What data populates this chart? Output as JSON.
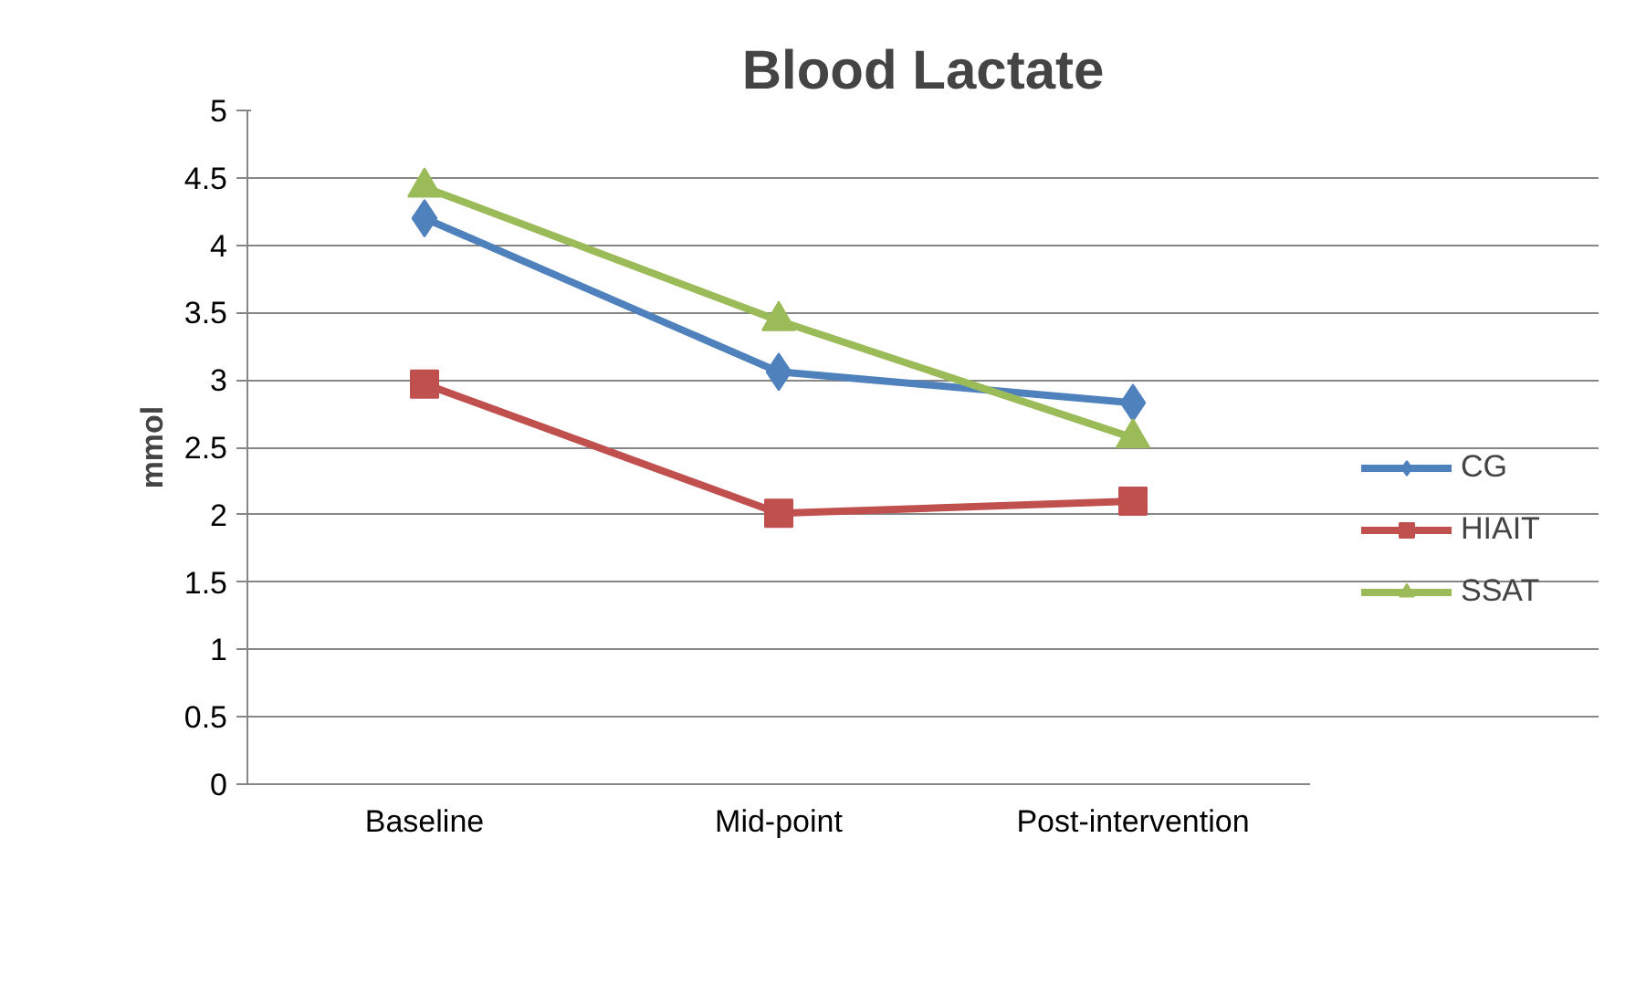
{
  "chart_data": {
    "type": "line",
    "title": "Blood Lactate",
    "ylabel": "mmol",
    "categories": [
      "Baseline",
      "Mid-point",
      "Post-intervention"
    ],
    "series": [
      {
        "name": "CG",
        "color": "#4f81bd",
        "marker": "diamond",
        "values": [
          4.2,
          3.06,
          2.83
        ]
      },
      {
        "name": "HIAIT",
        "color": "#c0504d",
        "marker": "square",
        "values": [
          2.97,
          2.01,
          2.1
        ]
      },
      {
        "name": "SSAT",
        "color": "#9bbb59",
        "marker": "triangle",
        "values": [
          4.43,
          3.44,
          2.57
        ]
      }
    ],
    "ylim": [
      0,
      5
    ],
    "yticks": [
      0,
      0.5,
      1,
      1.5,
      2,
      2.5,
      3,
      3.5,
      4,
      4.5,
      5
    ],
    "grid": "y",
    "legend": "right",
    "line_style": "solid"
  }
}
